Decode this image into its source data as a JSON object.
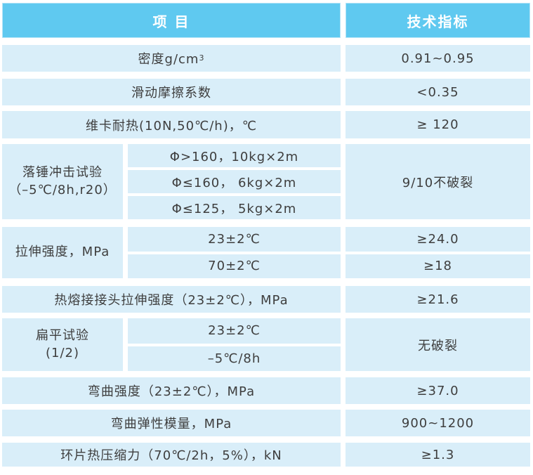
{
  "colors": {
    "header_bg": "#5fc9f0",
    "header_border": "#b5e4f7",
    "header_text": "#ffffff",
    "row_bg": "#d9eef9",
    "body_text": "#3e3e3e",
    "page_bg": "#ffffff"
  },
  "header": {
    "item": "项 目",
    "spec": "技术指标"
  },
  "rows": {
    "density": {
      "item": "密度g/cm",
      "sup": "3",
      "value": "0.91~0.95"
    },
    "friction": {
      "item": "滑动摩擦系数",
      "value": "<0.35"
    },
    "vicat": {
      "item": "维卡耐热(10N,50℃/h)，℃",
      "value": "≥ 120"
    },
    "drop_impact": {
      "label1": "落锤冲击试验",
      "label2": "（–5℃/8h,r20）",
      "cond1": "Φ>160，10kg×2m",
      "cond2": "Φ≤160， 6kg×2m",
      "cond3": "Φ≤125， 5kg×2m",
      "value": "9/10不破裂"
    },
    "tensile": {
      "label": "拉伸强度，MPa",
      "cond1": "23±2℃",
      "cond2": "70±2℃",
      "value1": "≥24.0",
      "value2": "≥18"
    },
    "fusion": {
      "item": "热熔接接头拉伸强度（23±2℃），MPa",
      "value": "≥21.6"
    },
    "flattening": {
      "label1": "扁平试验",
      "label2": "(1/2)",
      "cond1": "23±2℃",
      "cond2": "–5℃/8h",
      "value": "无破裂"
    },
    "bending": {
      "item": "弯曲强度（23±2℃），MPa",
      "value": "≥37.0"
    },
    "modulus": {
      "item": "弯曲弹性模量，MPa",
      "value": "900~1200"
    },
    "ring": {
      "item": "环片热压缩力（70℃/2h，5%），kN",
      "value": "≥1.3"
    }
  }
}
